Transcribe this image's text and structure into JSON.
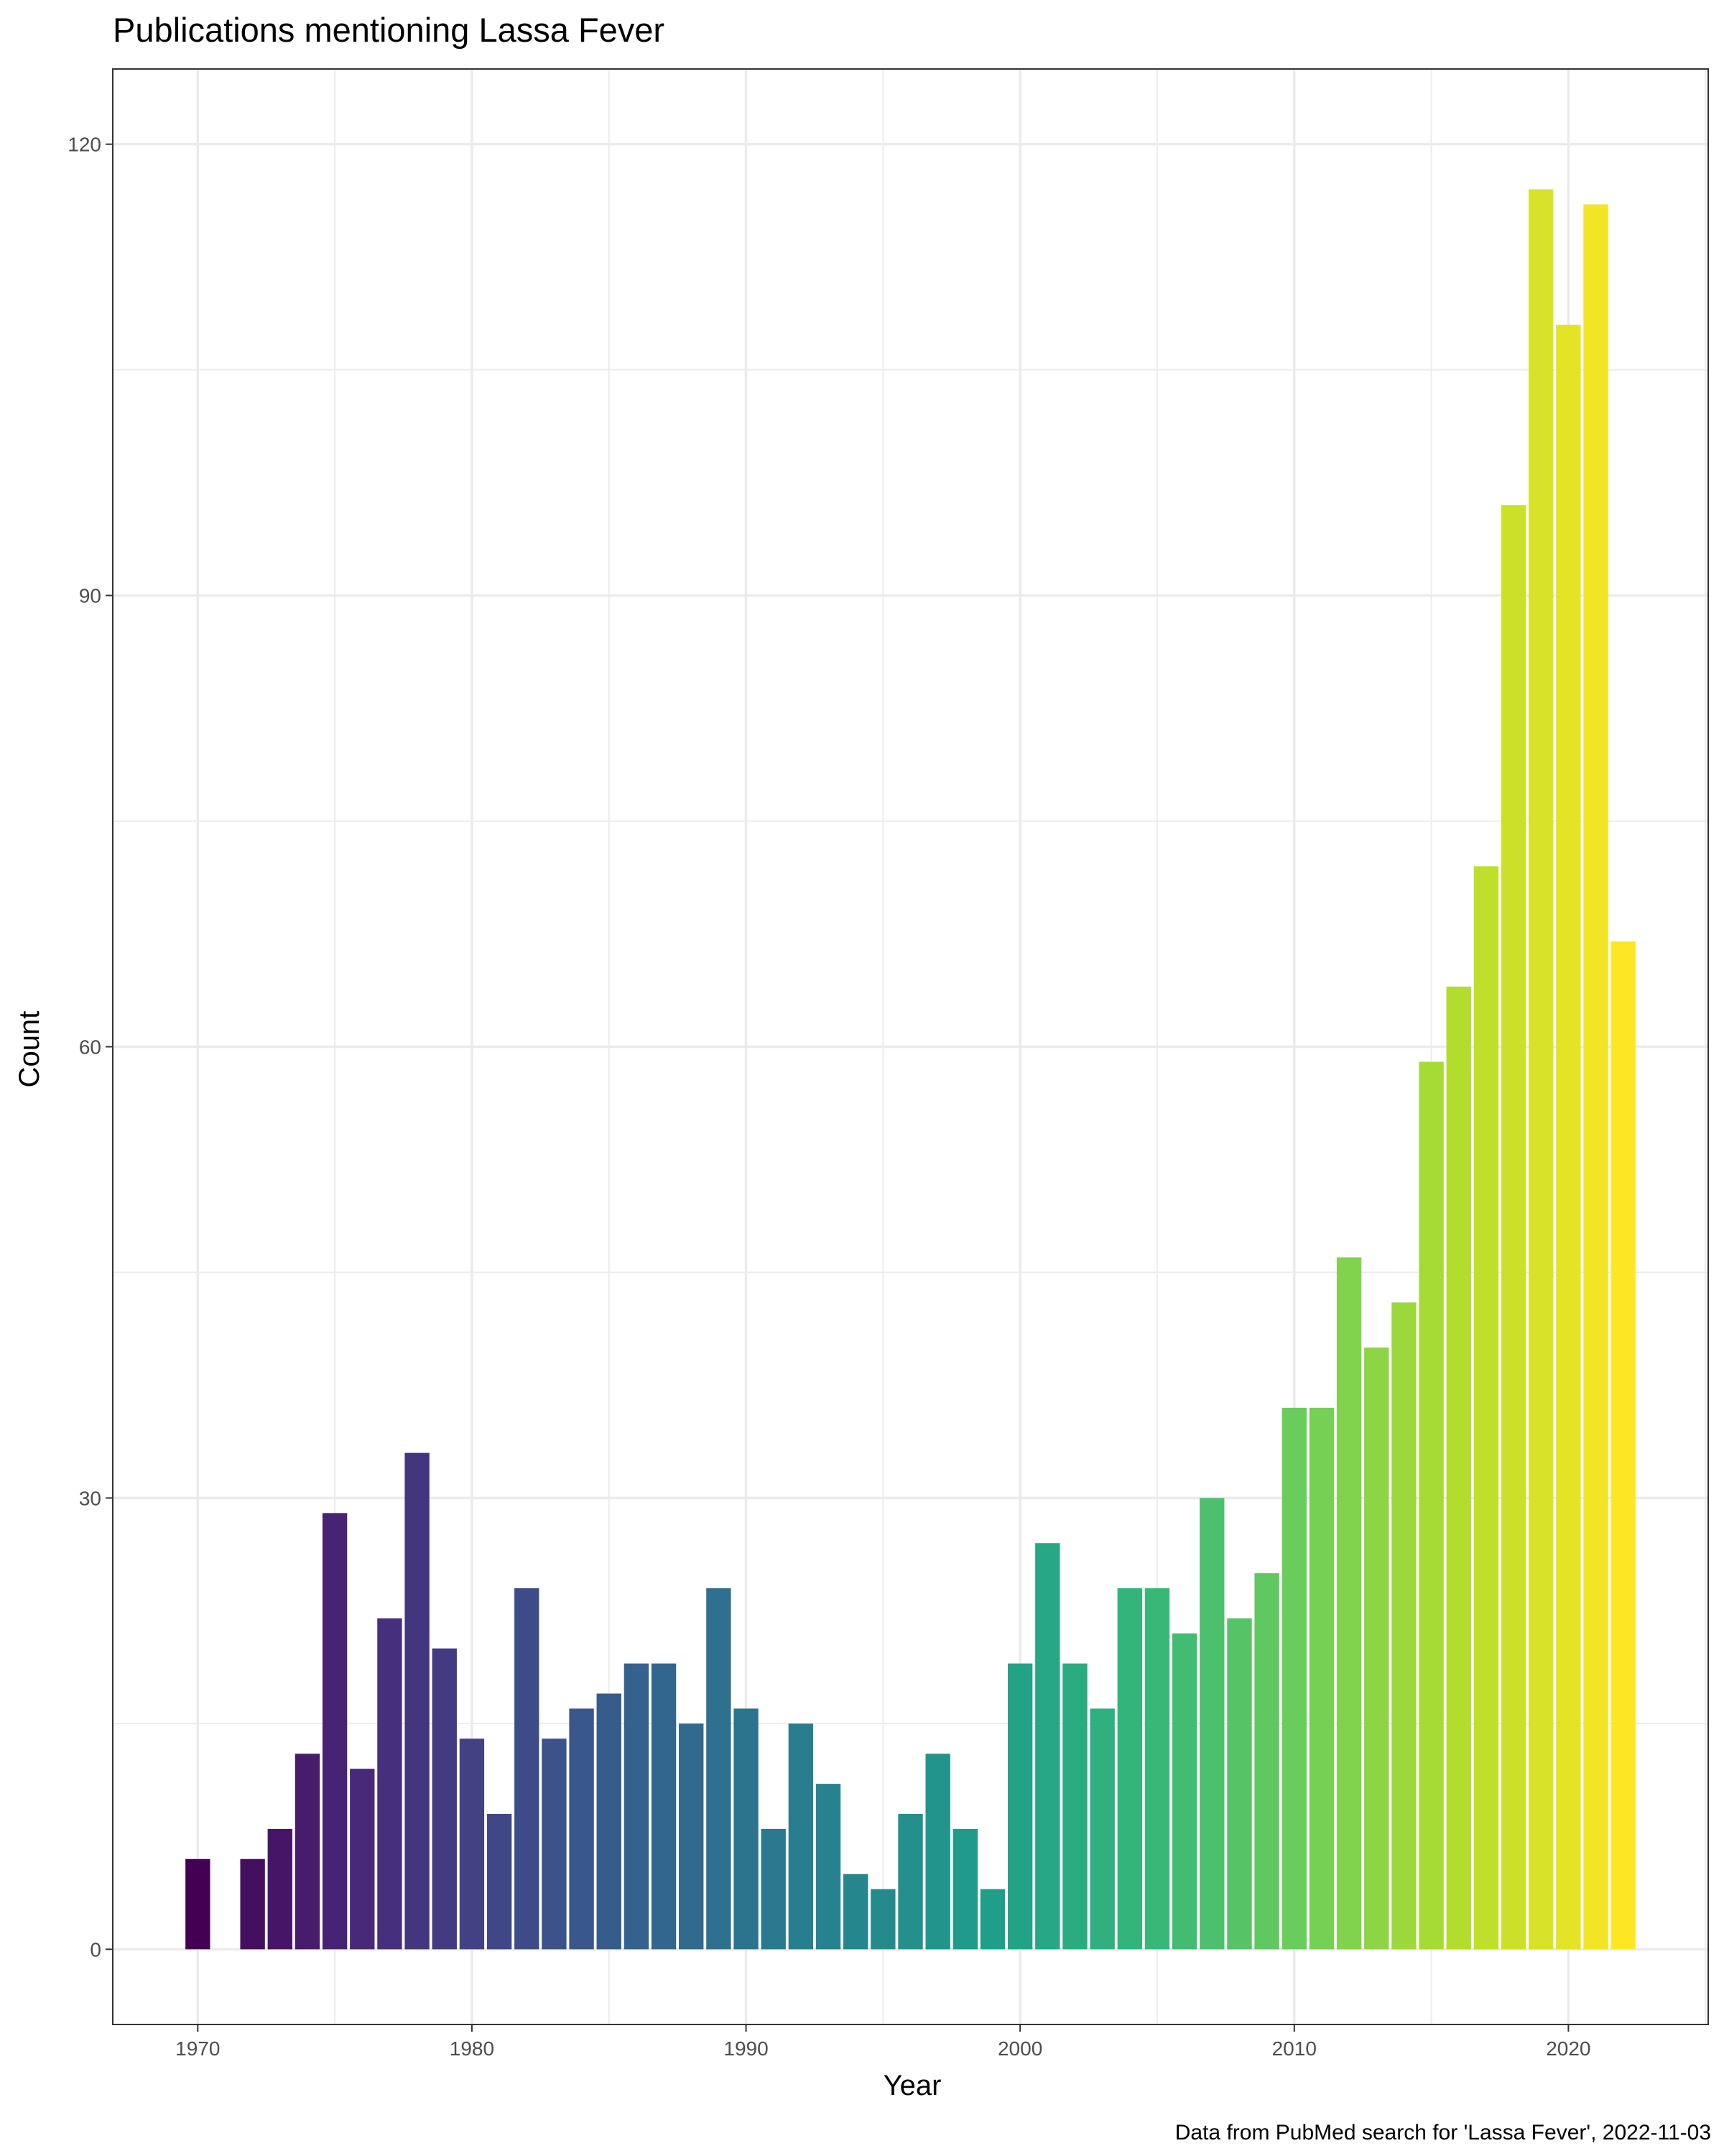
{
  "chart_data": {
    "type": "bar",
    "title": "Publications mentioning Lassa Fever",
    "xlabel": "Year",
    "ylabel": "Count",
    "caption": "Data from PubMed search for 'Lassa Fever', 2022-11-03",
    "x": [
      1970,
      1972,
      1973,
      1974,
      1975,
      1976,
      1977,
      1978,
      1979,
      1980,
      1981,
      1982,
      1983,
      1984,
      1985,
      1986,
      1987,
      1988,
      1989,
      1990,
      1991,
      1992,
      1993,
      1994,
      1995,
      1996,
      1997,
      1998,
      1999,
      2000,
      2001,
      2002,
      2003,
      2004,
      2005,
      2006,
      2007,
      2008,
      2009,
      2010,
      2011,
      2012,
      2013,
      2014,
      2015,
      2016,
      2017,
      2018,
      2019,
      2020,
      2021,
      2022
    ],
    "values": [
      6,
      6,
      8,
      13,
      29,
      12,
      22,
      33,
      20,
      14,
      9,
      24,
      14,
      16,
      17,
      19,
      19,
      15,
      24,
      16,
      8,
      15,
      11,
      5,
      4,
      9,
      13,
      8,
      4,
      19,
      27,
      19,
      16,
      24,
      24,
      21,
      30,
      22,
      25,
      36,
      36,
      46,
      40,
      43,
      59,
      64,
      72,
      96,
      117,
      108,
      116,
      67
    ],
    "xlim": [
      1966.9,
      2025.1
    ],
    "ylim": [
      -5,
      125
    ],
    "x_ticks": [
      1970,
      1980,
      1990,
      2000,
      2010,
      2020
    ],
    "y_ticks": [
      0,
      30,
      60,
      90,
      120
    ],
    "color_scale": "viridis",
    "color_range": [
      "#440154",
      "#fde725"
    ],
    "grid": true,
    "legend": "none"
  }
}
